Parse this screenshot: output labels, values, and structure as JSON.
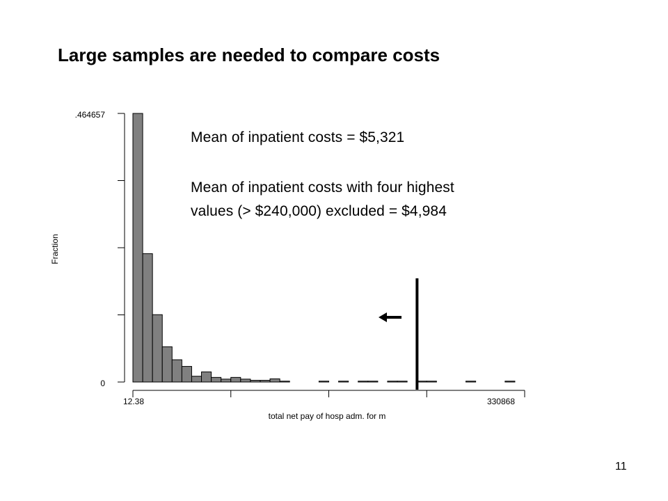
{
  "slide": {
    "title": "Large samples are needed to compare costs",
    "page_number": "11"
  },
  "annotations": {
    "line1": "Mean of inpatient costs = $5,321",
    "line2": "Mean of inpatient costs with four highest",
    "line3": "values (> $240,000) excluded = $4,984",
    "arrow_icon": "left-arrow-icon"
  },
  "chart_data": {
    "type": "bar",
    "subtype": "histogram",
    "xlabel": "total net pay of hosp adm. for m",
    "ylabel": "Fraction",
    "xlim": [
      12.38,
      330868
    ],
    "ylim": [
      0,
      464657
    ],
    "x_tick_labels": [
      "12.38",
      "330868"
    ],
    "y_tick_labels": [
      "0",
      ".464657"
    ],
    "y_ticks_count": 5,
    "x_ticks_count": 5,
    "bin_width": 8271.4,
    "bins_start": [
      12.38,
      8283.8,
      16555.2,
      24826.6,
      33098.0,
      41369.4,
      49640.8,
      57912.2,
      66183.6,
      74455.0,
      82726.4,
      90997.8,
      99269.2,
      107540.6,
      115812.0,
      124083.4,
      132354.8,
      140626.2,
      148897.6,
      157169.0,
      165440.4,
      173711.8,
      181983.2,
      190254.6,
      198526.0,
      206797.4,
      215068.8,
      223340.2,
      231611.6,
      239883.0,
      248154.4,
      256425.8,
      264697.2,
      272968.6,
      281240.0,
      289511.4,
      297782.8,
      306054.2,
      314325.6,
      322597.0
    ],
    "values": [
      464657,
      222000,
      116500,
      61000,
      38500,
      27000,
      10000,
      17500,
      8000,
      5000,
      8000,
      5000,
      3000,
      3000,
      5500,
      1500,
      0,
      0,
      0,
      1500,
      0,
      1500,
      0,
      1500,
      1500,
      0,
      1500,
      1500,
      0,
      1500,
      1500,
      0,
      0,
      0,
      1500,
      0,
      0,
      0,
      1500,
      0
    ],
    "bar_color": "#808080",
    "grid": false,
    "marker_line_x": 240000,
    "legend": "none"
  }
}
